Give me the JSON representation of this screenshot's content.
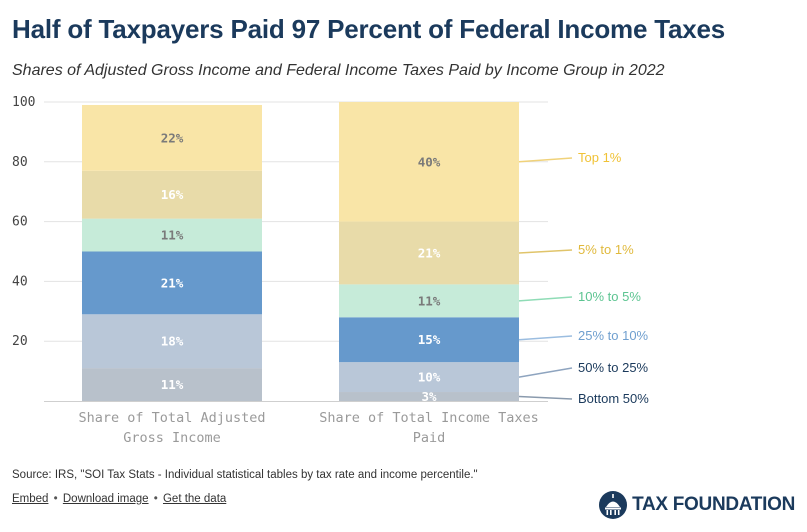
{
  "title": "Half of Taxpayers Paid 97 Percent of Federal Income Taxes",
  "subtitle": "Shares of Adjusted Gross Income and Federal Income Taxes Paid by Income Group in 2022",
  "chart_data": {
    "type": "bar",
    "stacked": true,
    "categories": [
      "Share of Total Adjusted Gross Income",
      "Share of Total Income Taxes Paid"
    ],
    "category_lines": [
      [
        "Share of Total Adjusted",
        "Gross Income"
      ],
      [
        "Share of Total Income Taxes",
        "Paid"
      ]
    ],
    "ylim": [
      0,
      100
    ],
    "yticks": [
      20,
      40,
      60,
      80,
      100
    ],
    "grid": true,
    "series": [
      {
        "name": "Bottom 50%",
        "values": [
          11,
          3
        ],
        "labels": [
          "11%",
          "3%"
        ],
        "color": "#b8c1cb",
        "label_color": "#ffffff",
        "legend_color": "#1b3a5c",
        "line_color": "#8a9aad"
      },
      {
        "name": "50% to 25%",
        "values": [
          18,
          10
        ],
        "labels": [
          "18%",
          "10%"
        ],
        "color": "#b9c7d8",
        "label_color": "#ffffff",
        "legend_color": "#1b3a5c",
        "line_color": "#8ea4bf"
      },
      {
        "name": "25% to 10%",
        "values": [
          21,
          15
        ],
        "labels": [
          "21%",
          "15%"
        ],
        "color": "#6699cc",
        "label_color": "#ffffff",
        "legend_color": "#6f9fcf",
        "line_color": "#9bbde0"
      },
      {
        "name": "10% to 5%",
        "values": [
          11,
          11
        ],
        "labels": [
          "11%",
          "11%"
        ],
        "color": "#c6ebd9",
        "label_color": "#7a7a7a",
        "legend_color": "#5cc491",
        "line_color": "#8fdcb6"
      },
      {
        "name": "5% to 1%",
        "values": [
          16,
          21
        ],
        "labels": [
          "16%",
          "21%"
        ],
        "color": "#e8dba9",
        "label_color": "#ffffff",
        "legend_color": "#e0b93c",
        "line_color": "#e0c46a"
      },
      {
        "name": "Top 1%",
        "values": [
          22,
          40
        ],
        "labels": [
          "22%",
          "40%"
        ],
        "color": "#f9e5a7",
        "label_color": "#7a7a7a",
        "legend_color": "#f0c236",
        "line_color": "#f0d27a"
      }
    ]
  },
  "source": "Source: IRS, \"SOI Tax Stats - Individual statistical tables by tax rate and income percentile.\"",
  "links": {
    "embed": "Embed",
    "download": "Download image",
    "data": "Get the data",
    "separator": "•"
  },
  "brand": {
    "name": "TAX FOUNDATION",
    "color": "#1b3a5c"
  }
}
